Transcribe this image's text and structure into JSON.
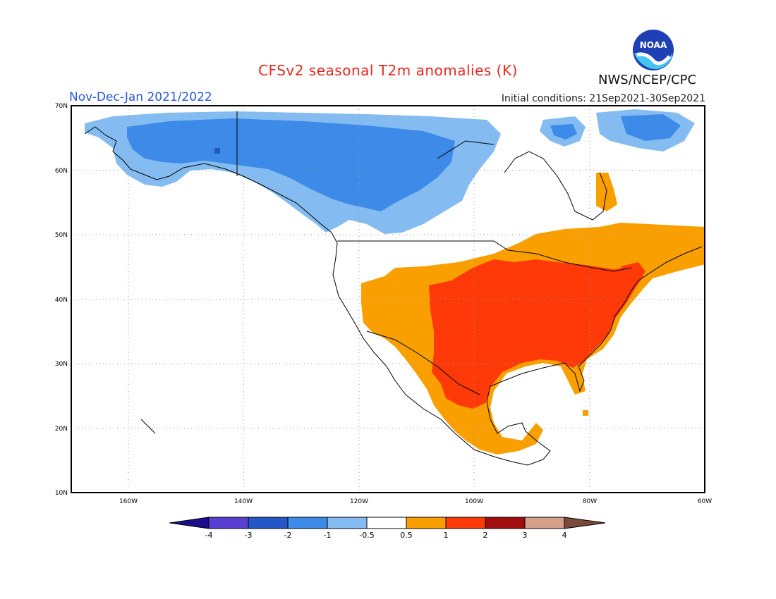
{
  "header": {
    "title": "CFSv2 seasonal T2m anomalies (K)",
    "period": "Nov-Dec-Jan 2021/2022",
    "initial_conditions": "Initial conditions: 21Sep2021-30Sep2021",
    "organization": "NWS/NCEP/CPC",
    "logo_text": "NOAA"
  },
  "map": {
    "lat_labels": [
      "70N",
      "60N",
      "50N",
      "40N",
      "30N",
      "20N",
      "10N"
    ],
    "lon_labels": [
      "160W",
      "140W",
      "120W",
      "100W",
      "80W",
      "60W"
    ]
  },
  "legend": {
    "ticks": [
      "-4",
      "-3",
      "-2",
      "-1",
      "-0.5",
      "0.5",
      "1",
      "2",
      "3",
      "4"
    ],
    "colors": [
      "#1c0d8e",
      "#5a3fd3",
      "#2456c7",
      "#3d8ae8",
      "#84bcf2",
      "#ffffff",
      "#f9a000",
      "#ff3a08",
      "#a20d0d",
      "#d6a08a",
      "#7b4a3c"
    ]
  }
}
